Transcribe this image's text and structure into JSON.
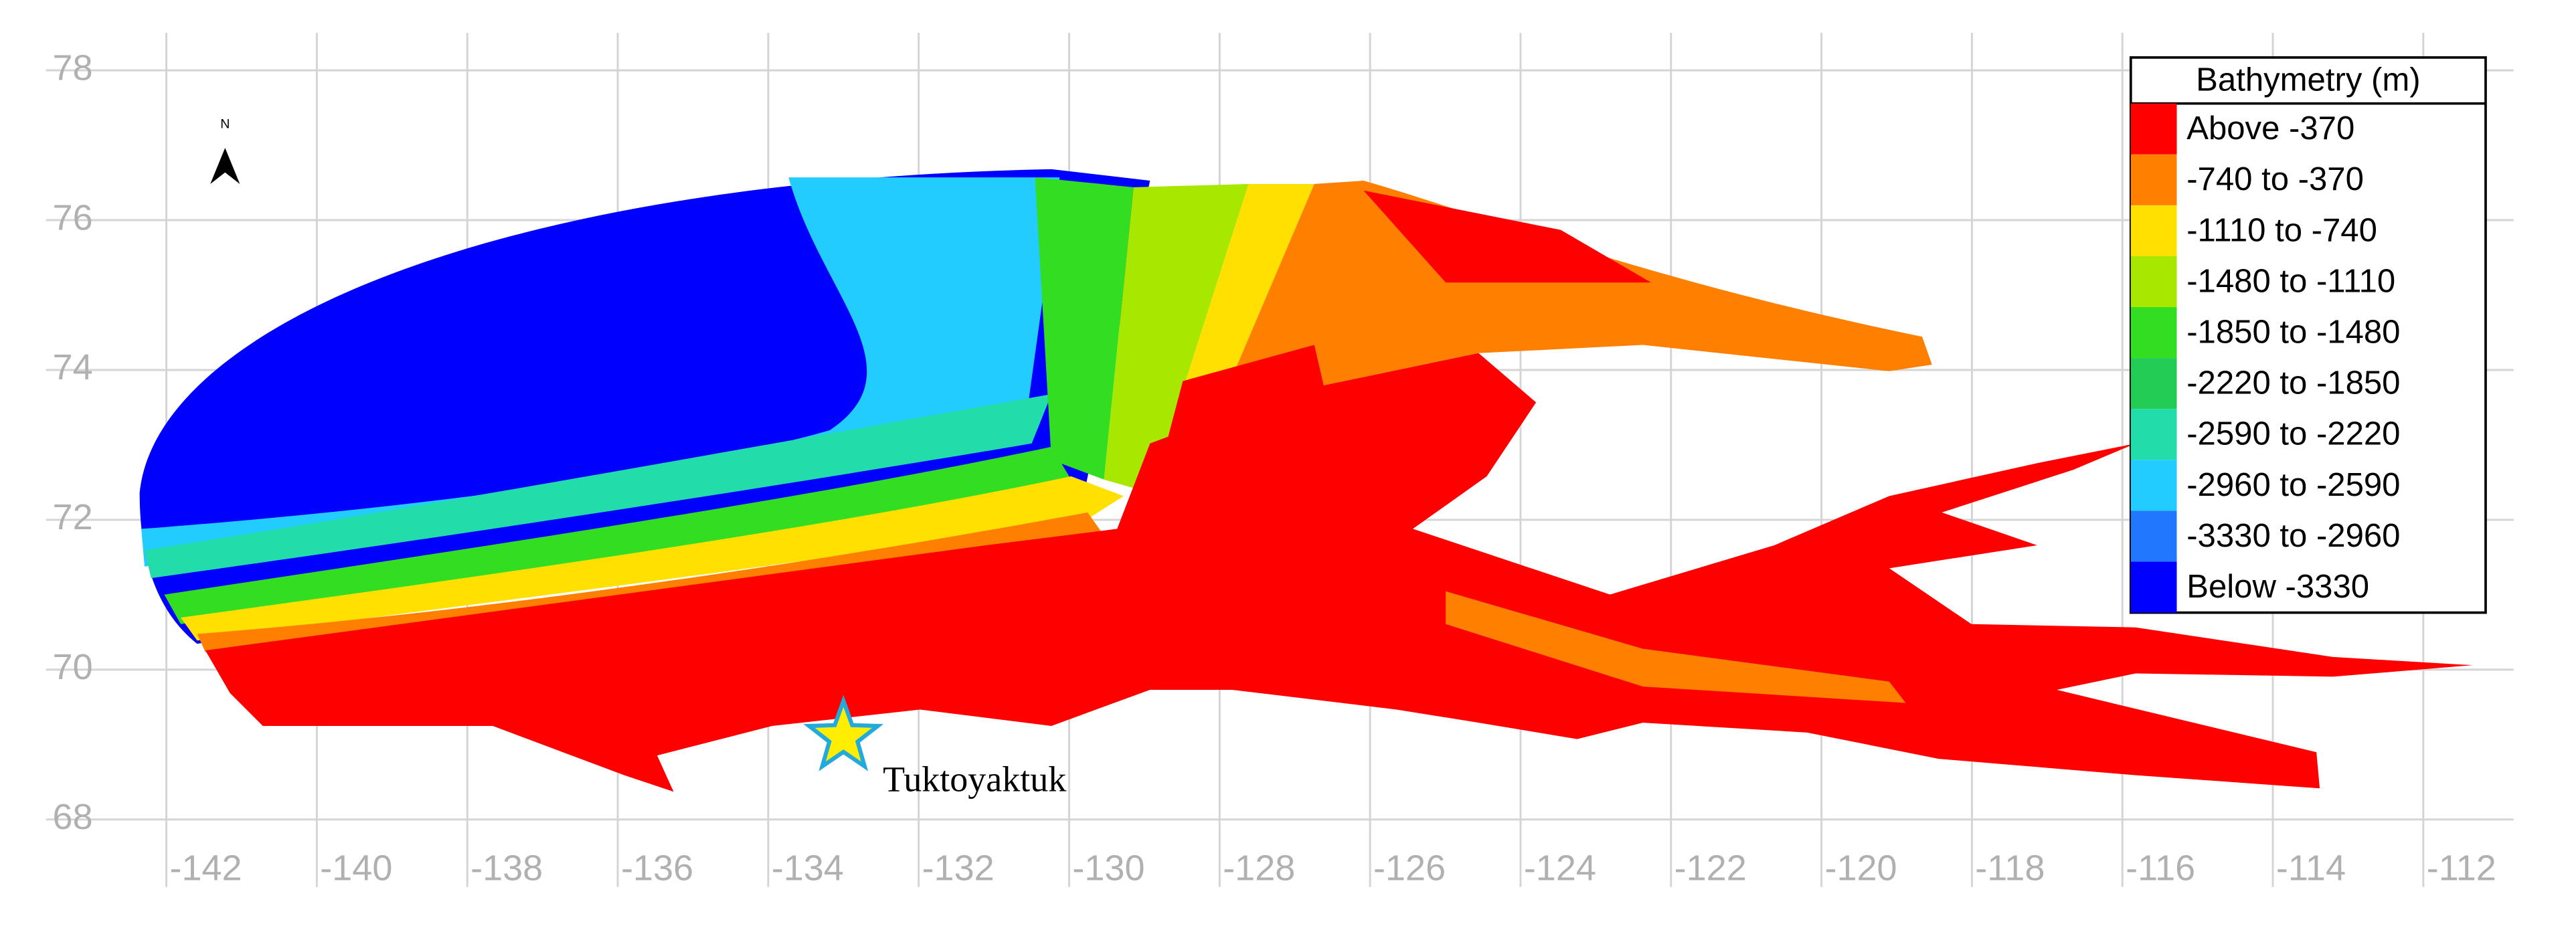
{
  "map": {
    "xlim": [
      -143.6,
      -110.8
    ],
    "ylim": [
      67.1,
      78.5
    ],
    "xticks": [
      -142,
      -140,
      -138,
      -136,
      -134,
      -132,
      -130,
      -128,
      -126,
      -124,
      -122,
      -120,
      -118,
      -116,
      -114,
      -112
    ],
    "yticks": [
      68,
      70,
      72,
      74,
      76,
      78
    ],
    "grid": true,
    "north_label": "N",
    "place": {
      "label": "Tuktoyaktuk",
      "lon": -133.0,
      "lat": 69.1
    },
    "legend": {
      "title": "Bathymetry (m)",
      "items": [
        {
          "label": "Above -370",
          "color": "#ff0000"
        },
        {
          "label": "-740 to -370",
          "color": "#ff8000"
        },
        {
          "label": "-1110 to -740",
          "color": "#ffe000"
        },
        {
          "label": "-1480 to -1110",
          "color": "#a8e800"
        },
        {
          "label": "-1850 to -1480",
          "color": "#33dd22"
        },
        {
          "label": "-2220 to -1850",
          "color": "#22cc55"
        },
        {
          "label": "-2590 to -2220",
          "color": "#22ddaa"
        },
        {
          "label": "-2960 to -2590",
          "color": "#22ccff"
        },
        {
          "label": "-3330 to -2960",
          "color": "#2277ff"
        },
        {
          "label": "Below -3330",
          "color": "#0000ff"
        }
      ]
    }
  }
}
